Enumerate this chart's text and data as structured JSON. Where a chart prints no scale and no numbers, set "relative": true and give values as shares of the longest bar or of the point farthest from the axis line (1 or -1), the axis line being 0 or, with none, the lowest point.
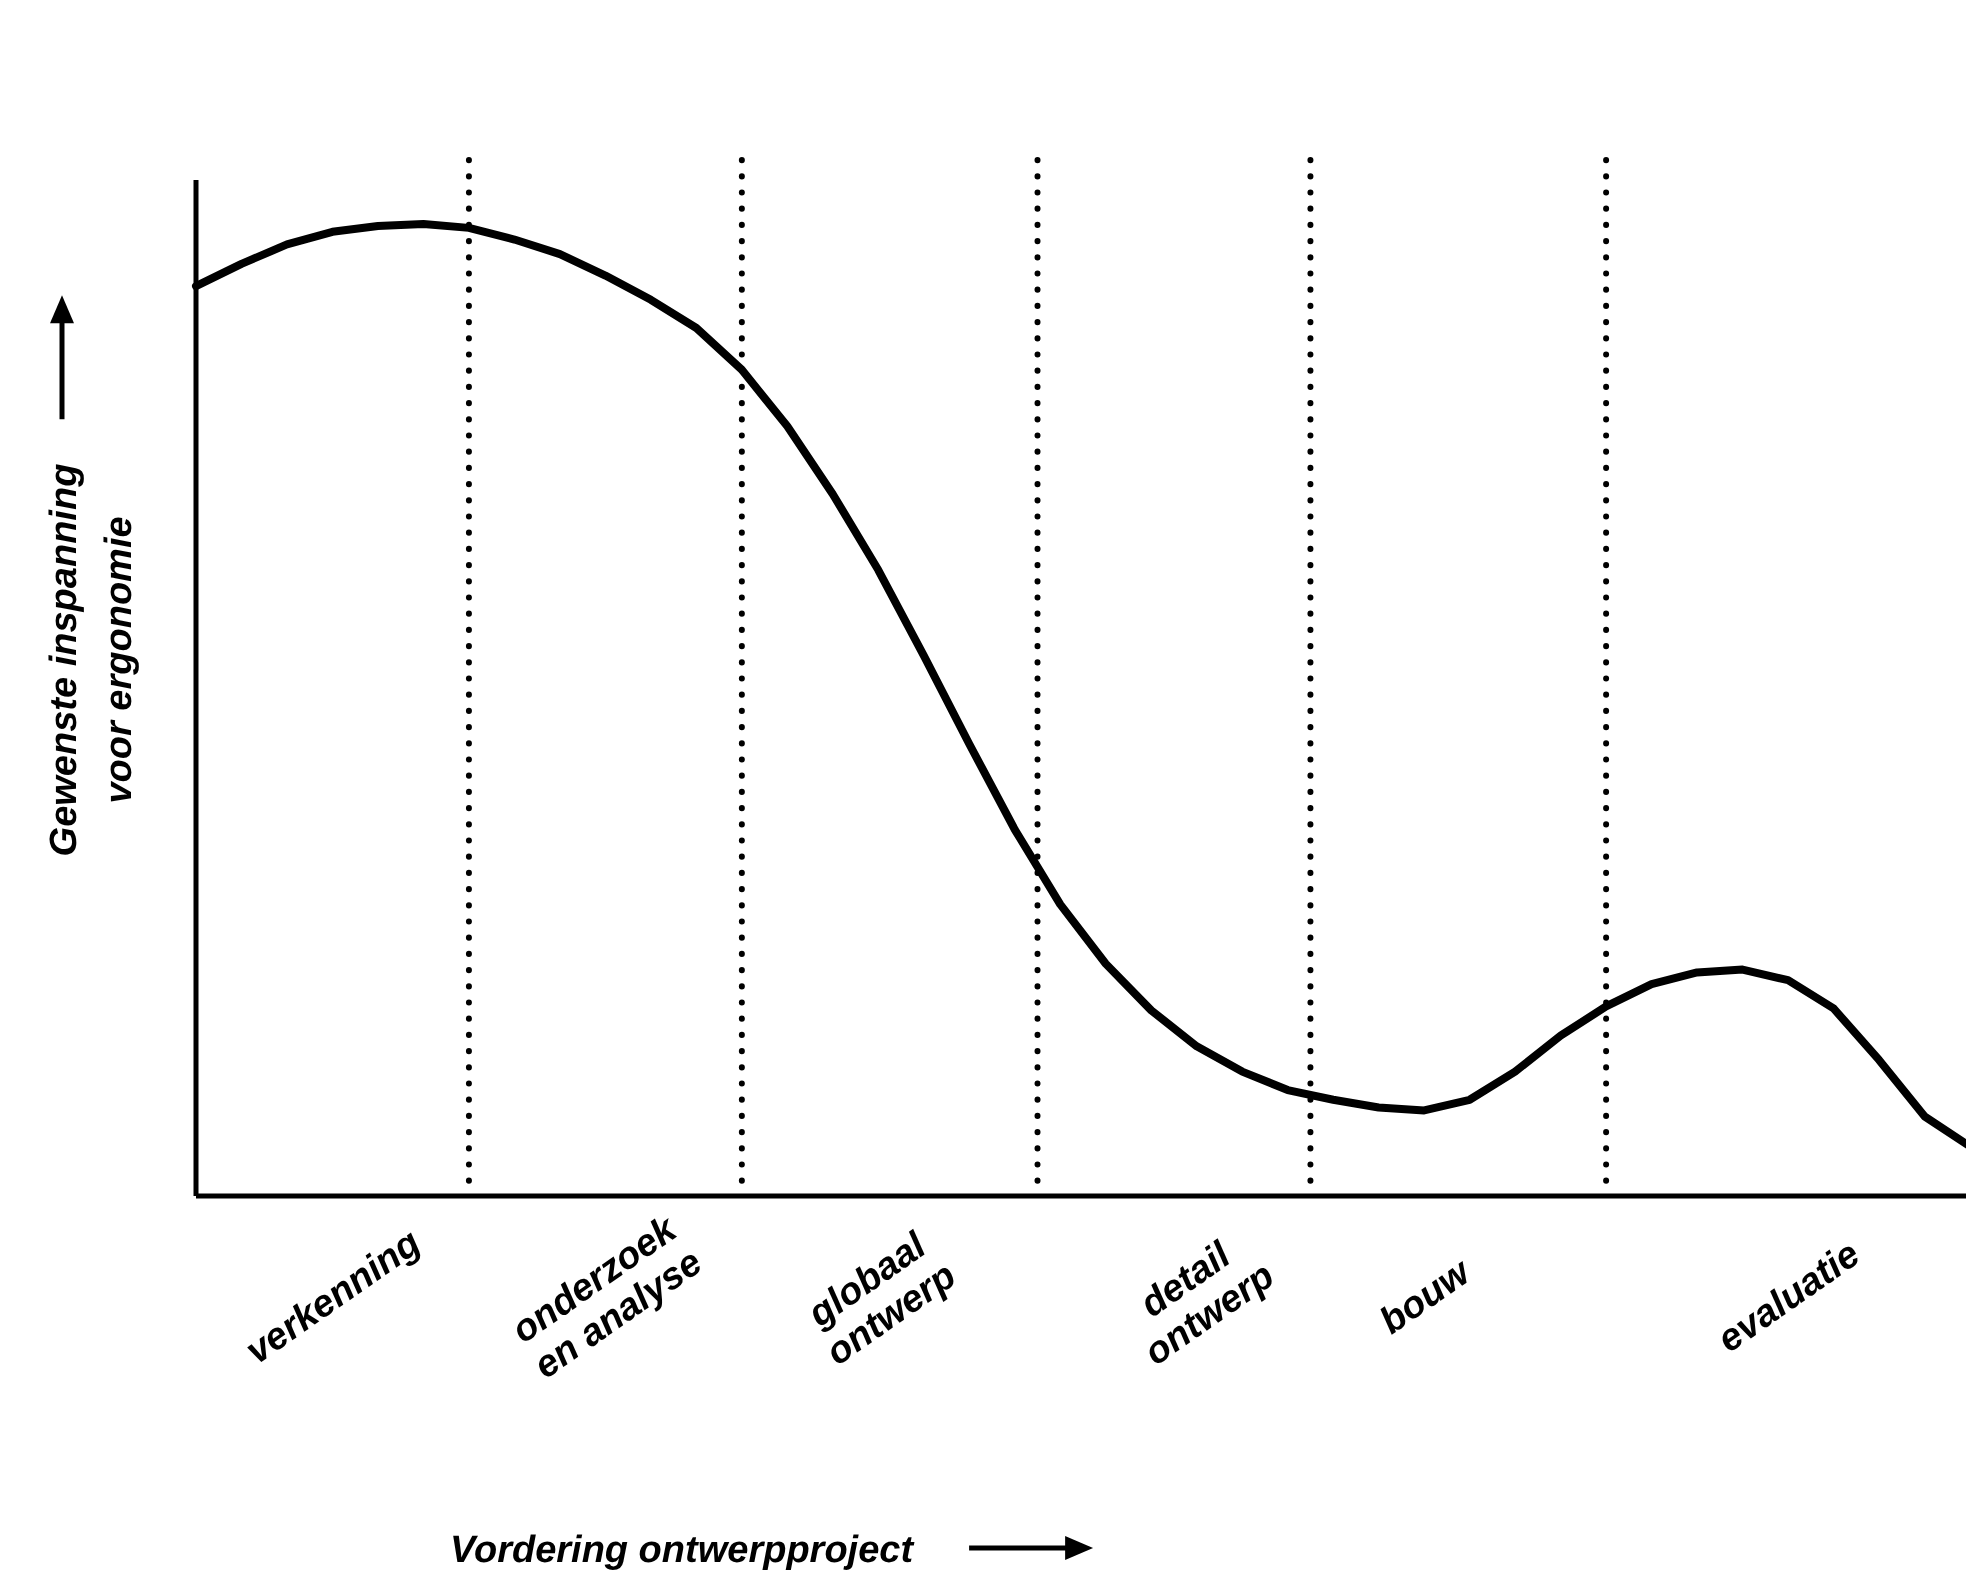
{
  "chart_data": {
    "type": "line",
    "relative": true,
    "xlabel": "Vordering ontwerpproject",
    "ylabel": "Gewenste inspanning\nvoor ergonomie",
    "categories": [
      null,
      null,
      null,
      "verkenning",
      null,
      null,
      null,
      null,
      null,
      "onderzoek en analyse",
      null,
      null,
      null,
      null,
      null,
      "globaal ontwerp",
      null,
      null,
      null,
      null,
      null,
      null,
      "detail ontwerp",
      null,
      null,
      null,
      null,
      "bouw",
      null,
      null,
      null,
      null,
      null,
      null,
      null,
      "evaluatie",
      null,
      null,
      null,
      null
    ],
    "series": [
      {
        "color": "#000000",
        "values": [
          0.936,
          0.959,
          0.979,
          0.992,
          0.998,
          1,
          0.996,
          0.984,
          0.969,
          0.947,
          0.922,
          0.893,
          0.85,
          0.792,
          0.722,
          0.644,
          0.556,
          0.465,
          0.377,
          0.3,
          0.239,
          0.191,
          0.154,
          0.128,
          0.109,
          0.099,
          0.091,
          0.088,
          0.099,
          0.128,
          0.165,
          0.195,
          0.218,
          0.23,
          0.233,
          0.222,
          0.193,
          0.14,
          0.082,
          0.051
        ]
      }
    ],
    "line_style": "solid",
    "marker": "none",
    "grid": "x"
  }
}
